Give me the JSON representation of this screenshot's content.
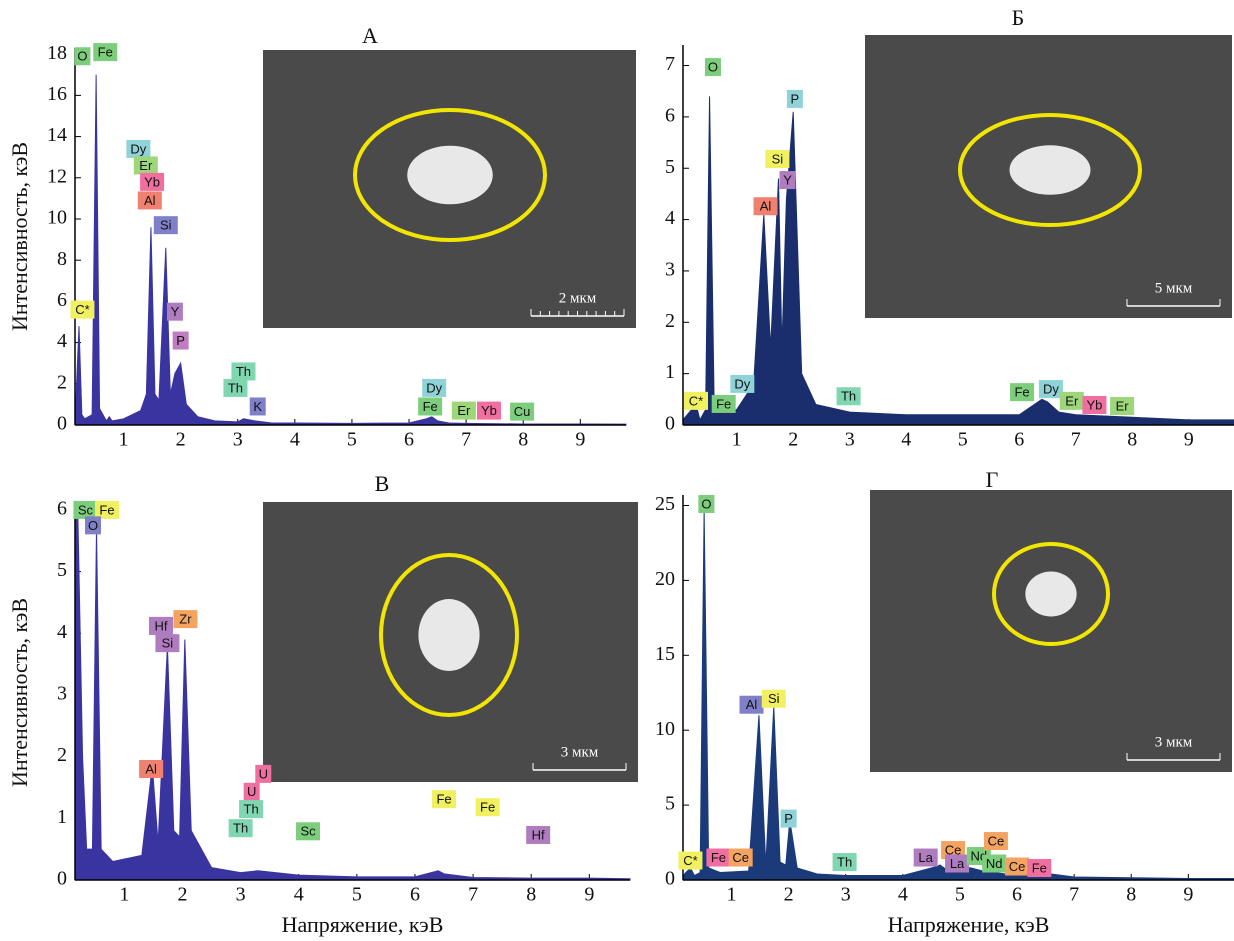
{
  "chart_data": [
    {
      "type": "area",
      "title": "А",
      "ylabel": "Интенсивность, кэВ",
      "scale_bar": "2 мкм",
      "xlim": [
        0.15,
        9.8
      ],
      "ylim": [
        0,
        18.3
      ],
      "xticks": [
        1,
        2,
        3,
        4,
        5,
        6,
        7,
        8,
        9
      ],
      "yticks": [
        0,
        2,
        4,
        6,
        8,
        10,
        12,
        14,
        16,
        18
      ],
      "color": "#3a34a0",
      "x": [
        0.15,
        0.22,
        0.27,
        0.32,
        0.45,
        0.52,
        0.58,
        0.7,
        0.75,
        0.8,
        1.0,
        1.3,
        1.4,
        1.48,
        1.55,
        1.62,
        1.74,
        1.82,
        1.9,
        2.0,
        2.1,
        2.3,
        2.6,
        3.0,
        3.1,
        3.3,
        3.6,
        4.0,
        5.0,
        6.0,
        6.3,
        6.4,
        6.5,
        6.7,
        7.0,
        8.0,
        9.0,
        9.8
      ],
      "values": [
        0.2,
        4.8,
        0.5,
        0.3,
        0.5,
        17.0,
        0.8,
        0.2,
        0.4,
        0.2,
        0.3,
        0.7,
        1.5,
        9.6,
        1.5,
        1.2,
        8.6,
        1.5,
        2.5,
        3.0,
        1.0,
        0.4,
        0.2,
        0.15,
        0.3,
        0.2,
        0.1,
        0.1,
        0.08,
        0.1,
        0.3,
        0.4,
        0.2,
        0.1,
        0.08,
        0.05,
        0.05,
        0.04
      ],
      "annotations": [
        {
          "text": "O",
          "x": 0.28,
          "y": 17.9,
          "color": "#7ccd7c"
        },
        {
          "text": "Fe",
          "x": 0.68,
          "y": 18.1,
          "color": "#7ccd7c"
        },
        {
          "text": "Dy",
          "x": 1.26,
          "y": 13.4,
          "color": "#8fd3d8"
        },
        {
          "text": "Er",
          "x": 1.39,
          "y": 12.6,
          "color": "#9ed67a"
        },
        {
          "text": "Yb",
          "x": 1.5,
          "y": 11.8,
          "color": "#f06fa0"
        },
        {
          "text": "Al",
          "x": 1.46,
          "y": 10.9,
          "color": "#f08070"
        },
        {
          "text": "Si",
          "x": 1.74,
          "y": 9.7,
          "color": "#8080c8"
        },
        {
          "text": "C*",
          "x": 0.28,
          "y": 5.6,
          "color": "#f0f060"
        },
        {
          "text": "Y",
          "x": 1.9,
          "y": 5.5,
          "color": "#b07cc0"
        },
        {
          "text": "P",
          "x": 2.0,
          "y": 4.1,
          "color": "#c07cc0"
        },
        {
          "text": "Th",
          "x": 3.1,
          "y": 2.6,
          "color": "#7fd6b0"
        },
        {
          "text": "Th",
          "x": 2.96,
          "y": 1.8,
          "color": "#7fd6b0"
        },
        {
          "text": "K",
          "x": 3.35,
          "y": 0.9,
          "color": "#8080c8"
        },
        {
          "text": "Dy",
          "x": 6.44,
          "y": 1.8,
          "color": "#8fd3d8"
        },
        {
          "text": "Fe",
          "x": 6.37,
          "y": 0.9,
          "color": "#7ccd7c"
        },
        {
          "text": "Er",
          "x": 6.96,
          "y": 0.7,
          "color": "#9ed67a"
        },
        {
          "text": "Yb",
          "x": 7.4,
          "y": 0.7,
          "color": "#f06fa0"
        },
        {
          "text": "Cu",
          "x": 7.98,
          "y": 0.65,
          "color": "#7ccd7c"
        }
      ]
    },
    {
      "type": "area",
      "title": "Б",
      "scale_bar": "5 мкм",
      "xlim": [
        0.05,
        9.8
      ],
      "ylim": [
        0,
        7.4
      ],
      "xticks": [
        1,
        2,
        3,
        4,
        5,
        6,
        7,
        8,
        9
      ],
      "yticks": [
        0,
        1,
        2,
        3,
        4,
        5,
        6,
        7
      ],
      "color": "#1a2e6e",
      "x": [
        0.05,
        0.28,
        0.35,
        0.45,
        0.52,
        0.6,
        0.75,
        1.0,
        1.3,
        1.48,
        1.6,
        1.74,
        1.8,
        1.88,
        2.0,
        2.15,
        2.4,
        3.0,
        4.0,
        5.0,
        6.0,
        6.4,
        6.5,
        6.7,
        7.0,
        8.0,
        9.0,
        9.8
      ],
      "values": [
        0.1,
        0.4,
        0.1,
        0.3,
        6.4,
        0.5,
        0.3,
        0.3,
        0.8,
        4.1,
        1.5,
        4.8,
        1.5,
        4.4,
        6.1,
        1.0,
        0.4,
        0.25,
        0.2,
        0.2,
        0.2,
        0.5,
        0.45,
        0.25,
        0.2,
        0.15,
        0.1,
        0.1
      ],
      "annotations": [
        {
          "text": "O",
          "x": 0.58,
          "y": 6.97,
          "color": "#7ccd7c"
        },
        {
          "text": "P",
          "x": 2.03,
          "y": 6.35,
          "color": "#8fd3d8"
        },
        {
          "text": "Si",
          "x": 1.72,
          "y": 5.18,
          "color": "#f0f060"
        },
        {
          "text": "Y",
          "x": 1.9,
          "y": 4.77,
          "color": "#b07cc0"
        },
        {
          "text": "Al",
          "x": 1.51,
          "y": 4.26,
          "color": "#f08070"
        },
        {
          "text": "Dy",
          "x": 1.1,
          "y": 0.8,
          "color": "#8fd3d8"
        },
        {
          "text": "C*",
          "x": 0.28,
          "y": 0.47,
          "color": "#f0f060"
        },
        {
          "text": "Fe",
          "x": 0.77,
          "y": 0.41,
          "color": "#7ccd7c"
        },
        {
          "text": "Th",
          "x": 2.98,
          "y": 0.56,
          "color": "#7fd6b0"
        },
        {
          "text": "Fe",
          "x": 6.05,
          "y": 0.64,
          "color": "#7ccd7c"
        },
        {
          "text": "Dy",
          "x": 6.56,
          "y": 0.7,
          "color": "#8fd3d8"
        },
        {
          "text": "Er",
          "x": 6.93,
          "y": 0.47,
          "color": "#9ed67a"
        },
        {
          "text": "Yb",
          "x": 7.33,
          "y": 0.39,
          "color": "#f06fa0"
        },
        {
          "text": "Er",
          "x": 7.82,
          "y": 0.37,
          "color": "#9ed67a"
        }
      ]
    },
    {
      "type": "area",
      "title": "В",
      "ylabel": "Интенсивность, кэВ",
      "xlabel": "Напряжение, кэВ",
      "scale_bar": "3 мкм",
      "xlim": [
        0.15,
        9.7
      ],
      "ylim": [
        0,
        6.08
      ],
      "xticks": [
        1,
        2,
        3,
        4,
        5,
        6,
        7,
        8,
        9
      ],
      "yticks": [
        0,
        1,
        2,
        3,
        4,
        5,
        6
      ],
      "color": "#3a34a0",
      "x": [
        0.15,
        0.2,
        0.28,
        0.35,
        0.45,
        0.52,
        0.6,
        0.8,
        1.3,
        1.48,
        1.58,
        1.74,
        1.85,
        1.95,
        2.04,
        2.15,
        2.5,
        3.0,
        3.3,
        4.0,
        5.0,
        6.0,
        6.4,
        6.5,
        7.0,
        8.0,
        9.0,
        9.7
      ],
      "values": [
        6.0,
        5.9,
        2.0,
        0.5,
        0.5,
        5.7,
        0.5,
        0.3,
        0.4,
        1.85,
        0.6,
        3.8,
        0.8,
        0.7,
        3.9,
        0.8,
        0.2,
        0.12,
        0.15,
        0.08,
        0.05,
        0.05,
        0.15,
        0.1,
        0.04,
        0.03,
        0.03,
        0.02
      ],
      "annotations": [
        {
          "text": "Sc",
          "x": 0.33,
          "y": 6.0,
          "color": "#7ccd7c"
        },
        {
          "text": "Fe",
          "x": 0.7,
          "y": 6.0,
          "color": "#f0f060"
        },
        {
          "text": "O",
          "x": 0.46,
          "y": 5.75,
          "color": "#8080c8"
        },
        {
          "text": "Hf",
          "x": 1.63,
          "y": 4.12,
          "color": "#b07cc0"
        },
        {
          "text": "Zr",
          "x": 2.05,
          "y": 4.23,
          "color": "#f4a460"
        },
        {
          "text": "Si",
          "x": 1.74,
          "y": 3.84,
          "color": "#b07cc0"
        },
        {
          "text": "Al",
          "x": 1.46,
          "y": 1.8,
          "color": "#f08070"
        },
        {
          "text": "U",
          "x": 3.39,
          "y": 1.72,
          "color": "#f06fa0"
        },
        {
          "text": "U",
          "x": 3.19,
          "y": 1.43,
          "color": "#f06fa0"
        },
        {
          "text": "Th",
          "x": 3.18,
          "y": 1.15,
          "color": "#7fd6b0"
        },
        {
          "text": "Th",
          "x": 3.0,
          "y": 0.84,
          "color": "#7fd6b0"
        },
        {
          "text": "Sc",
          "x": 4.16,
          "y": 0.79,
          "color": "#7ccd7c"
        },
        {
          "text": "Fe",
          "x": 6.5,
          "y": 1.31,
          "color": "#f0f060"
        },
        {
          "text": "Fe",
          "x": 7.25,
          "y": 1.18,
          "color": "#f0f060"
        },
        {
          "text": "Hf",
          "x": 8.12,
          "y": 0.73,
          "color": "#b07cc0"
        }
      ]
    },
    {
      "type": "area",
      "title": "Г",
      "xlabel": "Напряжение, кэВ",
      "scale_bar": "3 мкм",
      "xlim": [
        0.15,
        9.8
      ],
      "ylim": [
        0,
        25.7
      ],
      "xticks": [
        1,
        2,
        3,
        4,
        5,
        6,
        7,
        8,
        9
      ],
      "yticks": [
        0,
        5,
        10,
        15,
        20,
        25
      ],
      "color": "#1a3a7a",
      "x": [
        0.15,
        0.28,
        0.35,
        0.45,
        0.52,
        0.6,
        0.8,
        1.3,
        1.48,
        1.6,
        1.74,
        1.85,
        1.95,
        2.02,
        2.15,
        2.5,
        3.0,
        4.0,
        4.6,
        4.65,
        4.8,
        5.0,
        5.2,
        5.4,
        5.6,
        6.0,
        6.4,
        7.0,
        8.0,
        9.0,
        9.8
      ],
      "values": [
        0.3,
        0.8,
        0.3,
        0.5,
        24.7,
        0.8,
        0.5,
        0.6,
        11.0,
        1.0,
        11.6,
        1.2,
        1.0,
        4.0,
        0.8,
        0.4,
        0.3,
        0.3,
        0.9,
        1.0,
        0.6,
        0.9,
        0.8,
        0.6,
        0.5,
        0.3,
        0.5,
        0.2,
        0.15,
        0.1,
        0.1
      ],
      "annotations": [
        {
          "text": "O",
          "x": 0.56,
          "y": 25.1,
          "color": "#7ccd7c"
        },
        {
          "text": "Al",
          "x": 1.35,
          "y": 11.7,
          "color": "#8080c8"
        },
        {
          "text": "Si",
          "x": 1.74,
          "y": 12.1,
          "color": "#f0f060"
        },
        {
          "text": "P",
          "x": 2.0,
          "y": 4.1,
          "color": "#8fd3d8"
        },
        {
          "text": "C*",
          "x": 0.28,
          "y": 1.3,
          "color": "#f0f060"
        },
        {
          "text": "Fe",
          "x": 0.77,
          "y": 1.5,
          "color": "#f06fa0"
        },
        {
          "text": "Ce",
          "x": 1.16,
          "y": 1.5,
          "color": "#f4a460"
        },
        {
          "text": "Th",
          "x": 2.98,
          "y": 1.2,
          "color": "#7fd6b0"
        },
        {
          "text": "La",
          "x": 4.4,
          "y": 1.5,
          "color": "#b07cc0"
        },
        {
          "text": "Ce",
          "x": 4.88,
          "y": 2.0,
          "color": "#f4a460"
        },
        {
          "text": "La",
          "x": 4.95,
          "y": 1.1,
          "color": "#b07cc0"
        },
        {
          "text": "Nd",
          "x": 5.33,
          "y": 1.6,
          "color": "#7ccd7c"
        },
        {
          "text": "Nd",
          "x": 5.6,
          "y": 1.1,
          "color": "#7ccd7c"
        },
        {
          "text": "Ce",
          "x": 5.63,
          "y": 2.6,
          "color": "#f4a460"
        },
        {
          "text": "Ce",
          "x": 6.0,
          "y": 0.9,
          "color": "#f4a460"
        },
        {
          "text": "Fe",
          "x": 6.39,
          "y": 0.8,
          "color": "#f06fa0"
        }
      ]
    }
  ]
}
